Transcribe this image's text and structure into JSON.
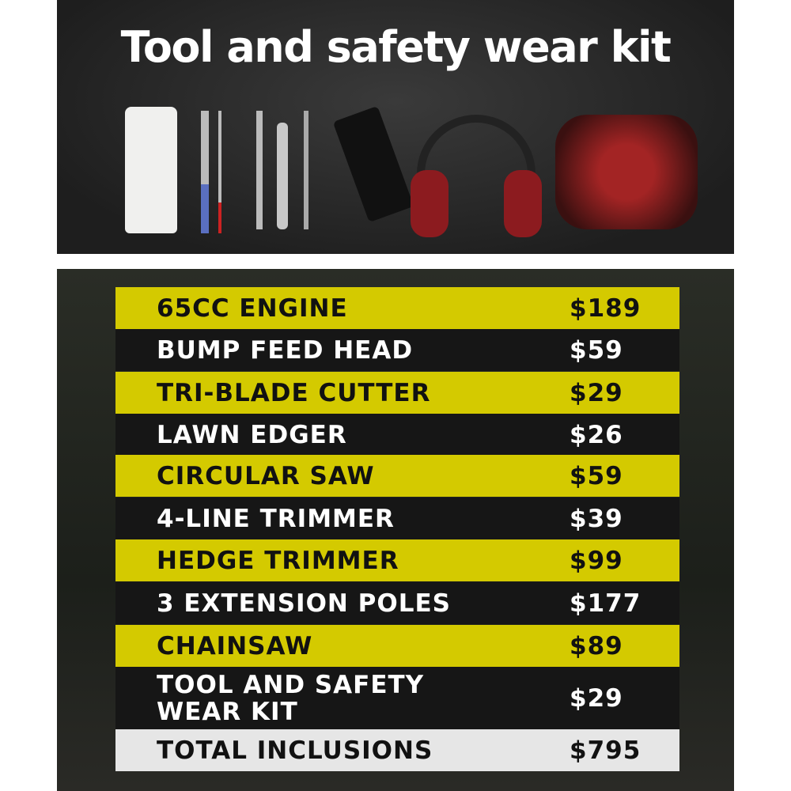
{
  "header": {
    "title": "Tool and safety wear kit"
  },
  "kit_items": [
    "oil-bottle",
    "screwdriver",
    "spark-plug-wrench",
    "spanner",
    "hex-keys",
    "harness-strap",
    "earmuffs",
    "safety-glasses",
    "gloves"
  ],
  "colors": {
    "highlight": "#d4ca00",
    "dark": "#161616",
    "total": "#e6e6e6"
  },
  "rows": [
    {
      "label": "65CC ENGINE",
      "price": "$189"
    },
    {
      "label": "BUMP FEED HEAD",
      "price": "$59"
    },
    {
      "label": "TRI-BLADE CUTTER",
      "price": "$29"
    },
    {
      "label": "LAWN EDGER",
      "price": "$26"
    },
    {
      "label": "CIRCULAR SAW",
      "price": "$59"
    },
    {
      "label": "4-LINE TRIMMER",
      "price": "$39"
    },
    {
      "label": "HEDGE TRIMMER",
      "price": "$99"
    },
    {
      "label": "3 EXTENSION POLES",
      "price": "$177"
    },
    {
      "label": "CHAINSAW",
      "price": "$89"
    },
    {
      "label": "TOOL AND SAFETY WEAR KIT",
      "price": "$29"
    }
  ],
  "total": {
    "label": "TOTAL INCLUSIONS",
    "price": "$795"
  }
}
